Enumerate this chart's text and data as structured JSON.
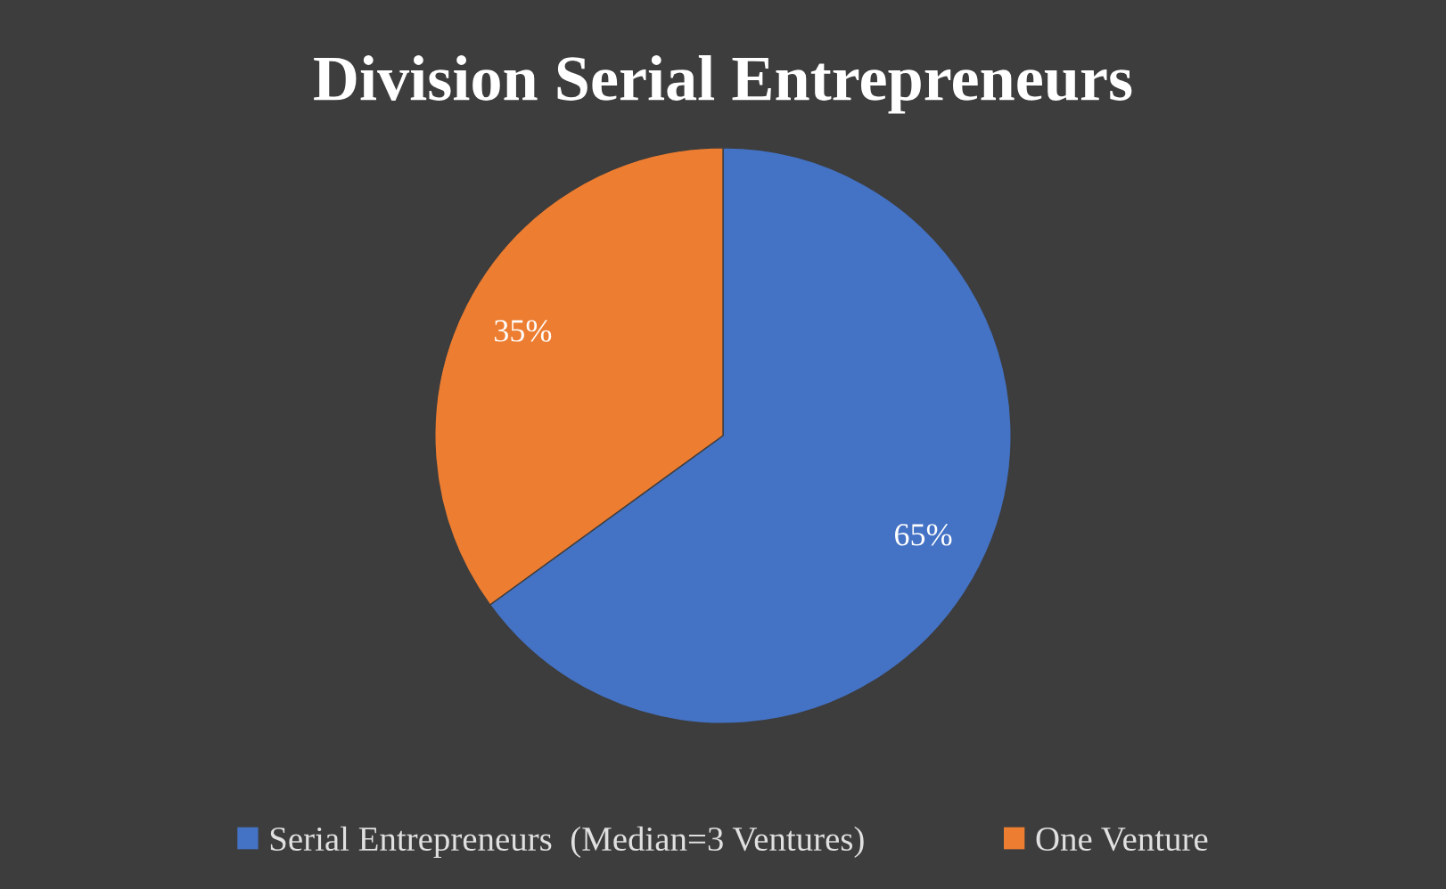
{
  "chart_data": {
    "type": "pie",
    "title": "Division Serial Entrepreneurs",
    "categories": [
      "Serial Entrepreneurs  (Median=3 Ventures)",
      "One Venture"
    ],
    "values": [
      65,
      35
    ],
    "colors": [
      "#4472c4",
      "#ed7d31"
    ],
    "value_labels": [
      "65%",
      "35%"
    ],
    "legend": "bottom"
  }
}
